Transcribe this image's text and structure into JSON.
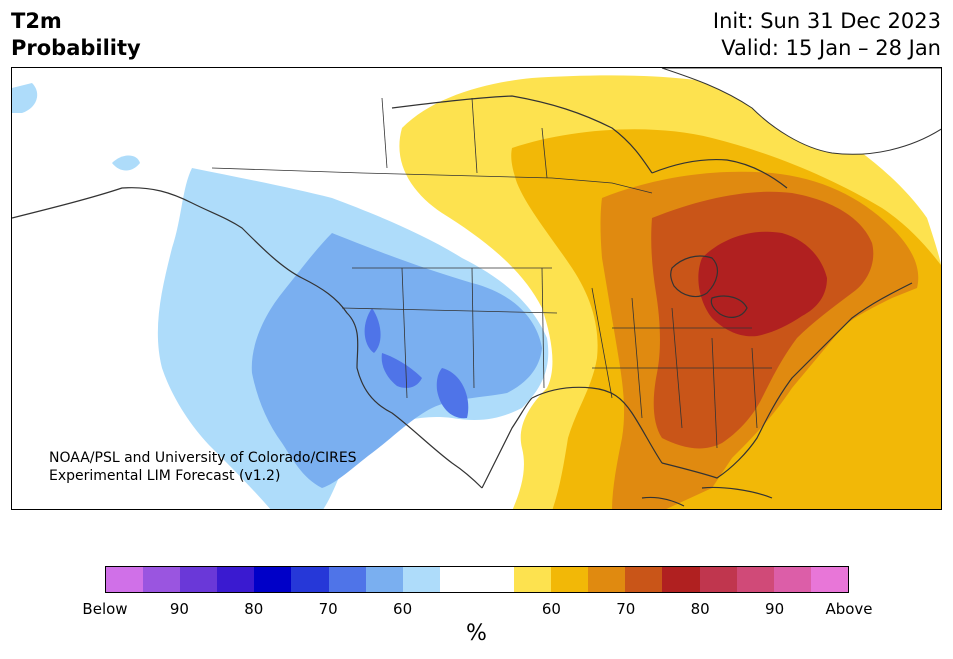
{
  "header": {
    "title_line1": "T2m",
    "title_line2": "Probability",
    "init": "Init: Sun 31 Dec 2023",
    "valid": "Valid: 15 Jan – 28 Jan"
  },
  "credit": {
    "line1": "NOAA/PSL and University of Colorado/CIRES",
    "line2": "Experimental LIM Forecast (v1.2)"
  },
  "colorbar": {
    "unit": "%",
    "colors": [
      "#d070e8",
      "#9a55e0",
      "#6a38d8",
      "#3a1ad0",
      "#0000c8",
      "#2638d8",
      "#4f74e8",
      "#7aaff0",
      "#aedcfa",
      "#ffffff",
      "#ffffff",
      "#fde24f",
      "#f2b807",
      "#e08a10",
      "#c95518",
      "#b02020",
      "#c0364e",
      "#d04a78",
      "#dc5ea8",
      "#e876d8"
    ],
    "ticks": [
      "Below",
      "90",
      "80",
      "70",
      "60",
      "60",
      "70",
      "80",
      "90",
      "Above"
    ]
  },
  "map": {
    "land_color": "#ffffff",
    "ocean_color": "#ffffff",
    "border_color": "#333333",
    "below_normal_colors": [
      "#aedcfa",
      "#7aaff0",
      "#4f74e8"
    ],
    "above_normal_colors": [
      "#fde24f",
      "#f2b807",
      "#e08a10",
      "#c95518",
      "#b02020"
    ]
  }
}
